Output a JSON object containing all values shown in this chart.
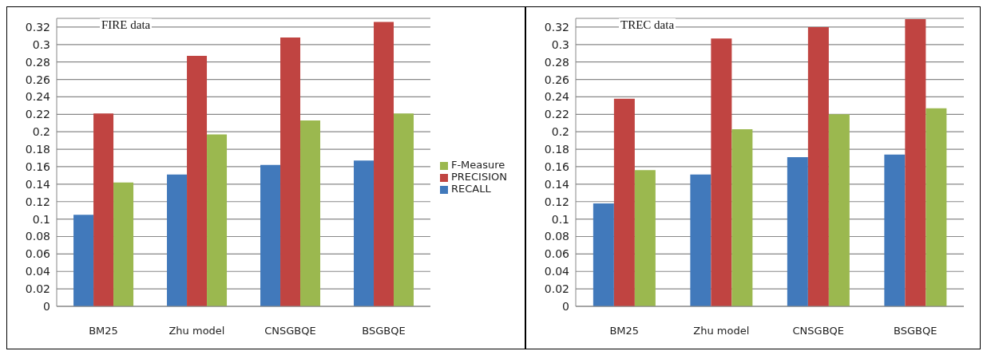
{
  "chart_data": [
    {
      "type": "bar",
      "title": "FIRE data",
      "categories": [
        "BM25",
        "Zhu model",
        "CNSGBQE",
        "BSGBQE"
      ],
      "series": [
        {
          "name": "RECALL",
          "color": "#4179bb",
          "values": [
            0.105,
            0.151,
            0.162,
            0.167
          ]
        },
        {
          "name": "PRECISION",
          "color": "#c04441",
          "values": [
            0.221,
            0.287,
            0.308,
            0.326
          ]
        },
        {
          "name": "F-Measure",
          "color": "#9bb84f",
          "values": [
            0.142,
            0.197,
            0.213,
            0.221
          ]
        }
      ],
      "ylim": [
        0,
        0.33
      ],
      "yticks": [
        0,
        0.02,
        0.04,
        0.06,
        0.08,
        0.1,
        0.12,
        0.14,
        0.16,
        0.18,
        0.2,
        0.22,
        0.24,
        0.26,
        0.28,
        0.3,
        0.32
      ],
      "grid": "y",
      "legend": "right"
    },
    {
      "type": "bar",
      "title": "TREC data",
      "categories": [
        "BM25",
        "Zhu model",
        "CNSGBQE",
        "BSGBQE"
      ],
      "series": [
        {
          "color": "#4179bb",
          "values": [
            0.118,
            0.151,
            0.171,
            0.174
          ]
        },
        {
          "color": "#c04441",
          "values": [
            0.238,
            0.307,
            0.32,
            0.329
          ]
        },
        {
          "color": "#9bb84f",
          "values": [
            0.156,
            0.203,
            0.22,
            0.227
          ]
        }
      ],
      "ylim": [
        0,
        0.33
      ],
      "yticks": [
        0,
        0.02,
        0.04,
        0.06,
        0.08,
        0.1,
        0.12,
        0.14,
        0.16,
        0.18,
        0.2,
        0.22,
        0.24,
        0.26,
        0.28,
        0.3,
        0.32
      ],
      "grid": "y"
    }
  ]
}
